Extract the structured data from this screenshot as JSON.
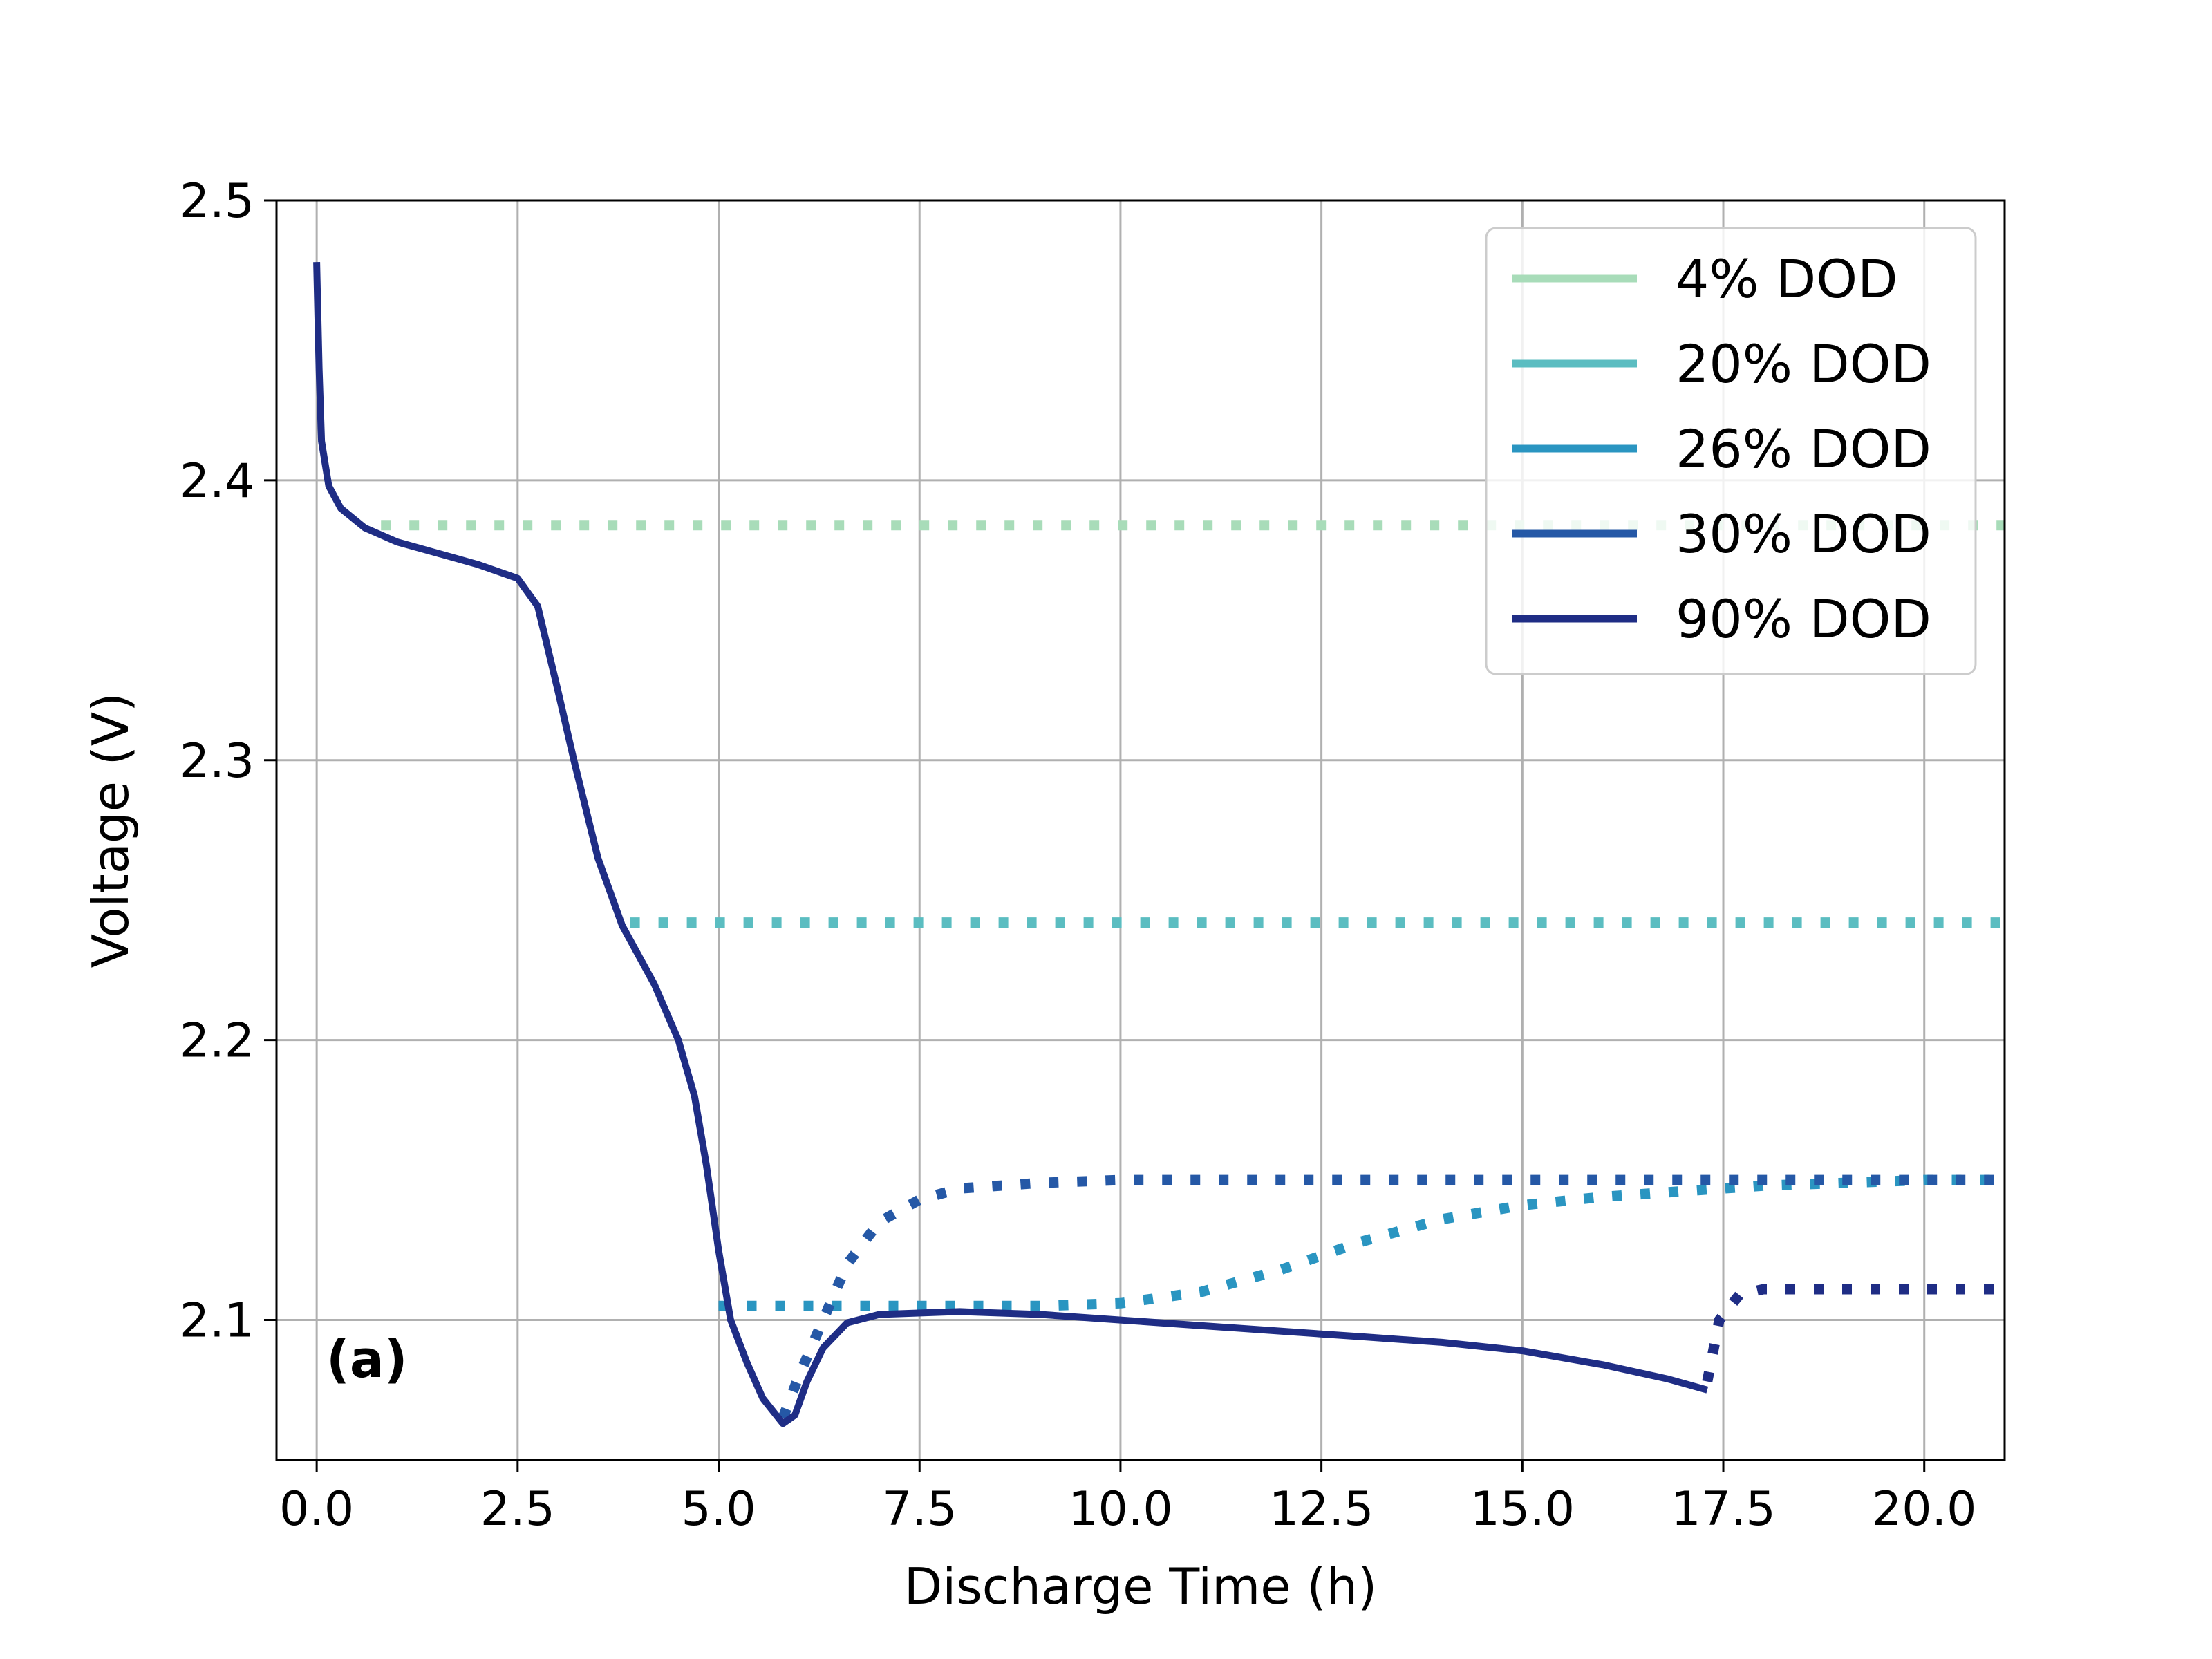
{
  "chart_data": {
    "type": "line",
    "xlabel": "Discharge Time (h)",
    "ylabel": "Voltage (V)",
    "xlim": [
      -0.5,
      21.0
    ],
    "ylim": [
      2.05,
      2.5
    ],
    "xticks": [
      "0.0",
      "2.5",
      "5.0",
      "7.5",
      "10.0",
      "12.5",
      "15.0",
      "17.5",
      "20.0"
    ],
    "xtick_values": [
      0.0,
      2.5,
      5.0,
      7.5,
      10.0,
      12.5,
      15.0,
      17.5,
      20.0
    ],
    "yticks": [
      "2.1",
      "2.2",
      "2.3",
      "2.4",
      "2.5"
    ],
    "ytick_values": [
      2.1,
      2.2,
      2.3,
      2.4,
      2.5
    ],
    "grid": true,
    "legend_position": "top-right",
    "panel_label": "(a)",
    "series": [
      {
        "name": "4% DOD",
        "color": "#a8dcb9",
        "rest": [
          [
            0.8,
            2.384
          ],
          [
            21.0,
            2.384
          ]
        ]
      },
      {
        "name": "20% DOD",
        "color": "#5bbdc1",
        "rest": [
          [
            3.9,
            2.242
          ],
          [
            21.0,
            2.242
          ]
        ]
      },
      {
        "name": "26% DOD",
        "color": "#2a95c1",
        "rest": [
          [
            5.0,
            2.105
          ],
          [
            6.0,
            2.105
          ],
          [
            7.0,
            2.105
          ],
          [
            8.0,
            2.105
          ],
          [
            9.0,
            2.105
          ],
          [
            10.0,
            2.106
          ],
          [
            11.0,
            2.11
          ],
          [
            12.0,
            2.118
          ],
          [
            13.0,
            2.128
          ],
          [
            14.0,
            2.136
          ],
          [
            15.0,
            2.141
          ],
          [
            16.0,
            2.144
          ],
          [
            17.0,
            2.146
          ],
          [
            18.0,
            2.148
          ],
          [
            19.0,
            2.149
          ],
          [
            20.0,
            2.15
          ],
          [
            21.0,
            2.15
          ]
        ]
      },
      {
        "name": "30% DOD",
        "color": "#2558a6",
        "rest": [
          [
            5.8,
            2.065
          ],
          [
            6.0,
            2.08
          ],
          [
            6.3,
            2.1
          ],
          [
            6.6,
            2.12
          ],
          [
            7.0,
            2.135
          ],
          [
            7.5,
            2.143
          ],
          [
            8.0,
            2.147
          ],
          [
            9.0,
            2.149
          ],
          [
            10.0,
            2.15
          ],
          [
            12.0,
            2.15
          ],
          [
            15.0,
            2.15
          ],
          [
            18.0,
            2.15
          ],
          [
            21.0,
            2.15
          ]
        ]
      },
      {
        "name": "90% DOD",
        "color": "#1f2d85",
        "discharge": [
          [
            0.0,
            2.478
          ],
          [
            0.03,
            2.44
          ],
          [
            0.06,
            2.414
          ],
          [
            0.15,
            2.398
          ],
          [
            0.3,
            2.39
          ],
          [
            0.6,
            2.383
          ],
          [
            1.0,
            2.378
          ],
          [
            1.5,
            2.374
          ],
          [
            2.0,
            2.37
          ],
          [
            2.5,
            2.365
          ],
          [
            2.75,
            2.355
          ],
          [
            3.0,
            2.325
          ],
          [
            3.2,
            2.3
          ],
          [
            3.5,
            2.265
          ],
          [
            3.8,
            2.241
          ],
          [
            4.2,
            2.22
          ],
          [
            4.5,
            2.2
          ],
          [
            4.7,
            2.18
          ],
          [
            4.85,
            2.155
          ],
          [
            5.0,
            2.125
          ],
          [
            5.15,
            2.1
          ],
          [
            5.35,
            2.085
          ],
          [
            5.55,
            2.072
          ],
          [
            5.8,
            2.063
          ],
          [
            5.95,
            2.066
          ],
          [
            6.1,
            2.078
          ],
          [
            6.3,
            2.09
          ],
          [
            6.6,
            2.099
          ],
          [
            7.0,
            2.102
          ],
          [
            8.0,
            2.103
          ],
          [
            9.0,
            2.102
          ],
          [
            10.0,
            2.1
          ],
          [
            11.0,
            2.098
          ],
          [
            12.0,
            2.096
          ],
          [
            13.0,
            2.094
          ],
          [
            14.0,
            2.092
          ],
          [
            15.0,
            2.089
          ],
          [
            16.0,
            2.084
          ],
          [
            16.8,
            2.079
          ],
          [
            17.3,
            2.075
          ]
        ],
        "rest": [
          [
            17.3,
            2.078
          ],
          [
            17.45,
            2.1
          ],
          [
            17.7,
            2.109
          ],
          [
            18.0,
            2.111
          ],
          [
            19.0,
            2.111
          ],
          [
            21.0,
            2.111
          ]
        ]
      }
    ]
  }
}
